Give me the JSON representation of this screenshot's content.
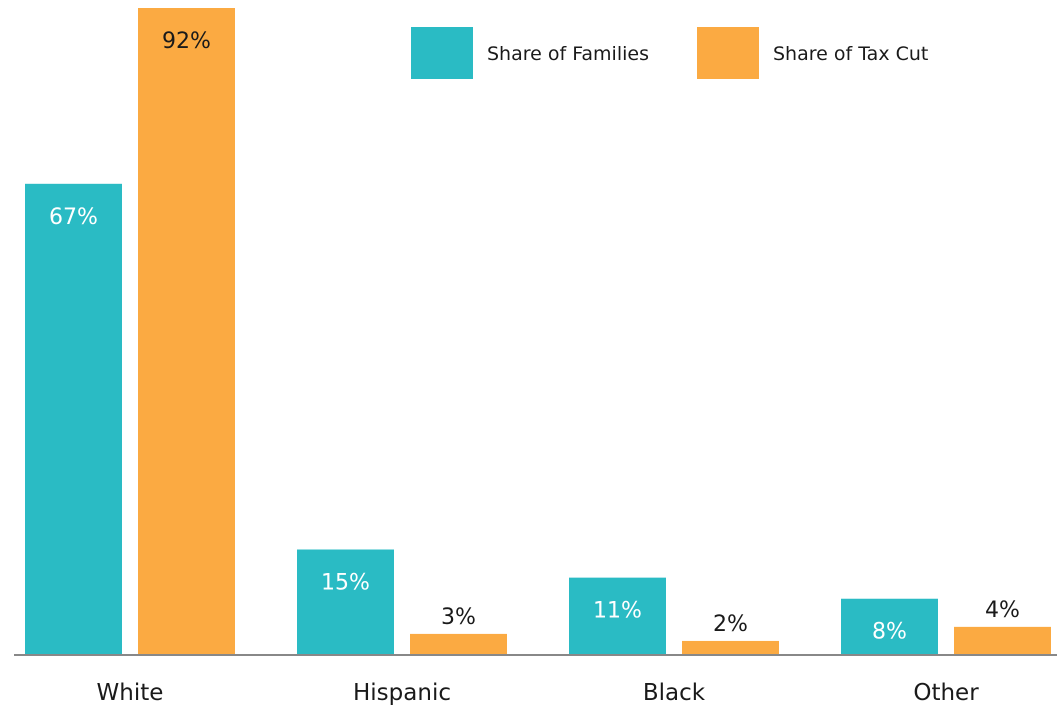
{
  "chart_data": {
    "type": "bar",
    "categories": [
      "White",
      "Hispanic",
      "Black",
      "Other"
    ],
    "series": [
      {
        "name": "Share of Families",
        "values": [
          67,
          15,
          11,
          8
        ],
        "labels": [
          "67%",
          "15%",
          "11%",
          "8%"
        ],
        "color": "#2ABBC4"
      },
      {
        "name": "Share of Tax Cut",
        "values": [
          92,
          3,
          2,
          4
        ],
        "labels": [
          "92%",
          "3%",
          "2%",
          "4%"
        ],
        "color": "#FBAA42"
      }
    ],
    "ylim": [
      0,
      92
    ],
    "grid": false,
    "legend": "top-right",
    "label_colors": {
      "inside": "#ffffff",
      "outside": "#1a1a1a"
    },
    "axis_color": "#888888"
  }
}
